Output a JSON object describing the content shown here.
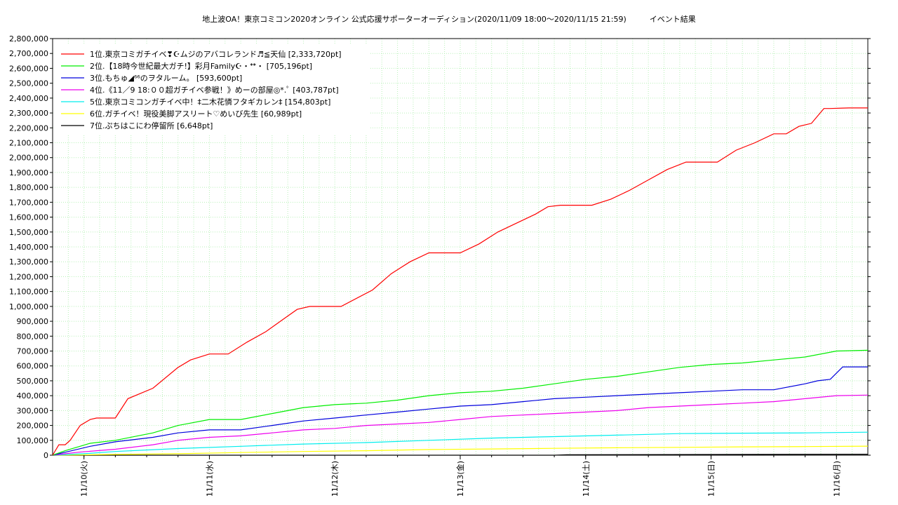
{
  "chart_data": {
    "type": "line",
    "title": "地上波OA！東京コミコン2020オンライン 公式応援サポーターオーディション(2020/11/09 18:00〜2020/11/15 21:59)　　　イベント結果",
    "xlabel": "",
    "ylabel": "",
    "ylim": [
      0,
      2800000
    ],
    "xlim": [
      0,
      6.5
    ],
    "grid": true,
    "legend_position": "top-left",
    "y_ticks": [
      "0",
      "100,000",
      "200,000",
      "300,000",
      "400,000",
      "500,000",
      "600,000",
      "700,000",
      "800,000",
      "900,000",
      "1,000,000",
      "1,100,000",
      "1,200,000",
      "1,300,000",
      "1,400,000",
      "1,500,000",
      "1,600,000",
      "1,700,000",
      "1,800,000",
      "1,900,000",
      "2,000,000",
      "2,100,000",
      "2,200,000",
      "2,300,000",
      "2,400,000",
      "2,500,000",
      "2,600,000",
      "2,700,000",
      "2,800,000"
    ],
    "x_tick_positions": [
      0.25,
      1.25,
      2.25,
      3.25,
      4.25,
      5.25,
      6.25
    ],
    "x_ticks": [
      "11/10(火)",
      "11/11(水)",
      "11/12(木)",
      "11/13(金)",
      "11/14(土)",
      "11/15(日)",
      "11/16(月)"
    ],
    "series": [
      {
        "name": "1位.東京コミガチイベ❣☪ムジのアバコレランド♬≦天仙 [2,333,720pt]",
        "color": "#ff0000",
        "x": [
          0,
          0.05,
          0.1,
          0.14,
          0.22,
          0.3,
          0.35,
          0.5,
          0.6,
          0.8,
          1.0,
          1.1,
          1.25,
          1.4,
          1.55,
          1.7,
          1.85,
          1.95,
          2.05,
          2.15,
          2.3,
          2.55,
          2.7,
          2.85,
          3.0,
          3.15,
          3.25,
          3.4,
          3.55,
          3.7,
          3.85,
          3.95,
          4.05,
          4.15,
          4.3,
          4.45,
          4.6,
          4.75,
          4.9,
          5.05,
          5.2,
          5.3,
          5.45,
          5.6,
          5.75,
          5.85,
          5.95,
          6.05,
          6.15,
          6.2,
          6.3,
          6.35,
          6.5
        ],
        "y": [
          0,
          70000,
          70000,
          100000,
          200000,
          240000,
          250000,
          250000,
          380000,
          450000,
          590000,
          640000,
          680000,
          680000,
          760000,
          830000,
          920000,
          980000,
          1000000,
          1000000,
          1000000,
          1110000,
          1220000,
          1300000,
          1360000,
          1360000,
          1360000,
          1420000,
          1500000,
          1560000,
          1620000,
          1670000,
          1680000,
          1680000,
          1680000,
          1720000,
          1780000,
          1850000,
          1920000,
          1970000,
          1970000,
          1970000,
          2050000,
          2100000,
          2160000,
          2160000,
          2210000,
          2230000,
          2330000,
          2330000,
          2333000,
          2333720,
          2333720
        ]
      },
      {
        "name": "2位.【18時今世紀最大ガチ!】彩月Family☪・ᕯ・ [705,196pt]",
        "color": "#00ee00",
        "x": [
          0,
          0.1,
          0.3,
          0.5,
          0.8,
          1.0,
          1.25,
          1.5,
          1.75,
          2.0,
          2.25,
          2.5,
          2.75,
          3.0,
          3.25,
          3.5,
          3.75,
          4.0,
          4.25,
          4.5,
          4.75,
          5.0,
          5.25,
          5.5,
          5.75,
          6.0,
          6.25,
          6.5
        ],
        "y": [
          0,
          30000,
          80000,
          100000,
          150000,
          200000,
          240000,
          240000,
          280000,
          320000,
          340000,
          350000,
          370000,
          400000,
          420000,
          430000,
          450000,
          480000,
          510000,
          530000,
          560000,
          590000,
          610000,
          620000,
          640000,
          660000,
          700000,
          705196
        ]
      },
      {
        "name": "3位.もちゅ◢⁶⁶のヲタルーム。 [593,600pt]",
        "color": "#0000dd",
        "x": [
          0,
          0.1,
          0.3,
          0.5,
          0.8,
          1.0,
          1.25,
          1.5,
          1.75,
          2.0,
          2.25,
          2.5,
          2.75,
          3.0,
          3.25,
          3.5,
          3.75,
          4.0,
          4.25,
          4.5,
          4.75,
          5.0,
          5.25,
          5.5,
          5.75,
          6.0,
          6.1,
          6.2,
          6.3,
          6.5
        ],
        "y": [
          0,
          20000,
          60000,
          90000,
          120000,
          150000,
          170000,
          170000,
          200000,
          230000,
          250000,
          270000,
          290000,
          310000,
          330000,
          340000,
          360000,
          380000,
          390000,
          400000,
          410000,
          420000,
          430000,
          440000,
          440000,
          480000,
          500000,
          510000,
          593600,
          593600
        ]
      },
      {
        "name": "4位.《11／9 18:００超ガチイベ参戦！》めーの部屋◎*.ﾟ [403,787pt]",
        "color": "#ee00ee",
        "x": [
          0,
          0.2,
          0.5,
          0.8,
          1.0,
          1.25,
          1.5,
          1.75,
          2.0,
          2.25,
          2.5,
          2.75,
          3.0,
          3.25,
          3.5,
          3.75,
          4.0,
          4.25,
          4.5,
          4.75,
          5.0,
          5.25,
          5.5,
          5.75,
          6.0,
          6.25,
          6.5
        ],
        "y": [
          0,
          20000,
          40000,
          70000,
          100000,
          120000,
          130000,
          150000,
          170000,
          180000,
          200000,
          210000,
          220000,
          240000,
          260000,
          270000,
          280000,
          290000,
          300000,
          320000,
          330000,
          340000,
          350000,
          360000,
          380000,
          400000,
          403787
        ]
      },
      {
        "name": "5位.東京コミコンガチイベ中！‡二木花憐フタギカレン‡ [154,803pt]",
        "color": "#00eeee",
        "x": [
          0,
          0.25,
          0.5,
          1.0,
          1.5,
          2.0,
          2.5,
          3.0,
          3.5,
          4.0,
          4.5,
          5.0,
          5.5,
          6.0,
          6.5
        ],
        "y": [
          0,
          10000,
          25000,
          45000,
          60000,
          75000,
          85000,
          100000,
          115000,
          125000,
          135000,
          145000,
          148000,
          150000,
          154803
        ]
      },
      {
        "name": "6位.ガチイベ！現役美脚アスリート♡めいび先生 [60,989pt]",
        "color": "#ffff00",
        "x": [
          0,
          0.5,
          1.0,
          1.5,
          2.0,
          2.5,
          3.0,
          3.5,
          4.0,
          4.5,
          5.0,
          5.5,
          6.0,
          6.5
        ],
        "y": [
          0,
          5000,
          10000,
          18000,
          25000,
          30000,
          38000,
          42000,
          46000,
          50000,
          53000,
          56000,
          58000,
          60989
        ]
      },
      {
        "name": "7位.ぷちはこにわ停留所 [6,648pt]",
        "color": "#000000",
        "x": [
          0,
          4.0,
          4.1,
          6.5
        ],
        "y": [
          0,
          0,
          3000,
          6648
        ]
      }
    ]
  }
}
